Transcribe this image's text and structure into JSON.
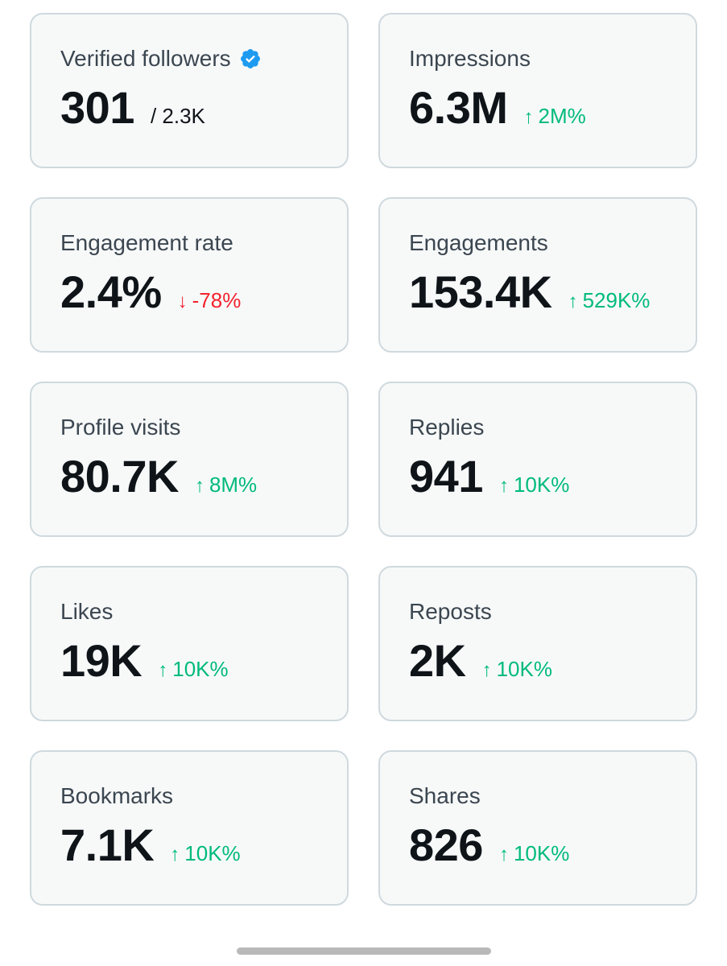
{
  "colors": {
    "card_background": "#f7f9f9",
    "card_border": "#cfd9de",
    "positive": "#00ba7c",
    "negative": "#f4212e",
    "verified_badge": "#1d9bf0"
  },
  "cards": [
    {
      "label": "Verified followers",
      "value": "301",
      "sub": "/ 2.3K",
      "icon": "verified-badge-icon"
    },
    {
      "label": "Impressions",
      "value": "6.3M",
      "change": "2M%",
      "direction": "up",
      "arrow": "↑"
    },
    {
      "label": "Engagement rate",
      "value": "2.4%",
      "change": "-78%",
      "direction": "down",
      "arrow": "↓"
    },
    {
      "label": "Engagements",
      "value": "153.4K",
      "change": "529K%",
      "direction": "up",
      "arrow": "↑"
    },
    {
      "label": "Profile visits",
      "value": "80.7K",
      "change": "8M%",
      "direction": "up",
      "arrow": "↑"
    },
    {
      "label": "Replies",
      "value": "941",
      "change": "10K%",
      "direction": "up",
      "arrow": "↑"
    },
    {
      "label": "Likes",
      "value": "19K",
      "change": "10K%",
      "direction": "up",
      "arrow": "↑"
    },
    {
      "label": "Reposts",
      "value": "2K",
      "change": "10K%",
      "direction": "up",
      "arrow": "↑"
    },
    {
      "label": "Bookmarks",
      "value": "7.1K",
      "change": "10K%",
      "direction": "up",
      "arrow": "↑"
    },
    {
      "label": "Shares",
      "value": "826",
      "change": "10K%",
      "direction": "up",
      "arrow": "↑"
    }
  ]
}
